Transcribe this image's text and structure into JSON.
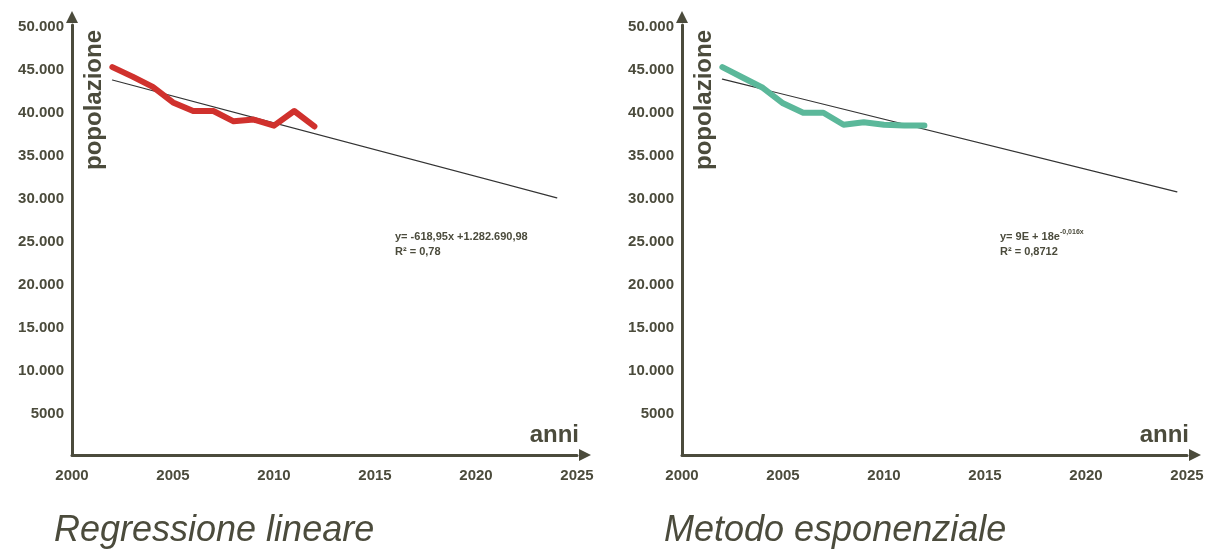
{
  "chart_data": [
    {
      "type": "line",
      "title": "Regressione lineare",
      "xlabel": "anni",
      "ylabel": "popolazione",
      "xlim": [
        2000,
        2025
      ],
      "xticks": [
        2000,
        2005,
        2010,
        2015,
        2020,
        2025
      ],
      "ylim": [
        0,
        50000
      ],
      "yticks": [
        5000,
        {
          "value": 10000,
          "label": "10.000"
        },
        {
          "value": 15000,
          "label": "15.000"
        },
        {
          "value": 20000,
          "label": "20.000"
        },
        {
          "value": 25000,
          "label": "25.000"
        },
        {
          "value": 30000,
          "label": "30.000"
        },
        {
          "value": 35000,
          "label": "35.000"
        },
        {
          "value": 40000,
          "label": "40.000"
        },
        {
          "value": 45000,
          "label": "45.000"
        },
        {
          "value": 50000,
          "label": "50.000"
        }
      ],
      "grid": false,
      "marker": "none",
      "line_style": "solid",
      "series": [
        {
          "color": "#d0312d",
          "x": [
            2002,
            2003,
            2004,
            2005,
            2006,
            2007,
            2008,
            2009,
            2010,
            2011,
            2012
          ],
          "values": [
            45100,
            44000,
            42800,
            41000,
            40000,
            40000,
            38800,
            39000,
            38300,
            40000,
            38200
          ]
        },
        {
          "type": "line",
          "color": "#333333",
          "x": [
            2002,
            2024
          ],
          "values": [
            43600,
            29900
          ]
        }
      ],
      "annotations": [
        "y= -618,95x +1.282.690,98",
        "R² = 0,78"
      ]
    },
    {
      "type": "line",
      "title": "Metodo esponenziale",
      "xlabel": "anni",
      "ylabel": "popolazione",
      "xlim": [
        2000,
        2025
      ],
      "xticks": [
        2000,
        2005,
        2010,
        2015,
        2020,
        2025
      ],
      "ylim": [
        0,
        50000
      ],
      "yticks": [
        5000,
        {
          "value": 10000,
          "label": "10.000"
        },
        {
          "value": 15000,
          "label": "15.000"
        },
        {
          "value": 20000,
          "label": "20.000"
        },
        {
          "value": 25000,
          "label": "25.000"
        },
        {
          "value": 30000,
          "label": "30.000"
        },
        {
          "value": 35000,
          "label": "35.000"
        },
        {
          "value": 40000,
          "label": "40.000"
        },
        {
          "value": 45000,
          "label": "45.000"
        },
        {
          "value": 50000,
          "label": "50.000"
        }
      ],
      "grid": false,
      "marker": "none",
      "line_style": "solid",
      "series": [
        {
          "color": "#5bb89a",
          "x": [
            2002,
            2003,
            2004,
            2005,
            2006,
            2007,
            2008,
            2009,
            2010,
            2011,
            2012
          ],
          "values": [
            45100,
            43900,
            42700,
            40900,
            39800,
            39800,
            38400,
            38700,
            38400,
            38300,
            38300
          ]
        },
        {
          "type": "line",
          "color": "#333333",
          "x": [
            2002,
            2024.5
          ],
          "values": [
            43700,
            30600
          ]
        }
      ],
      "annotations": [
        "y= 9E + 18e$^{-0,016x}$",
        "R² = 0,8712"
      ]
    }
  ]
}
